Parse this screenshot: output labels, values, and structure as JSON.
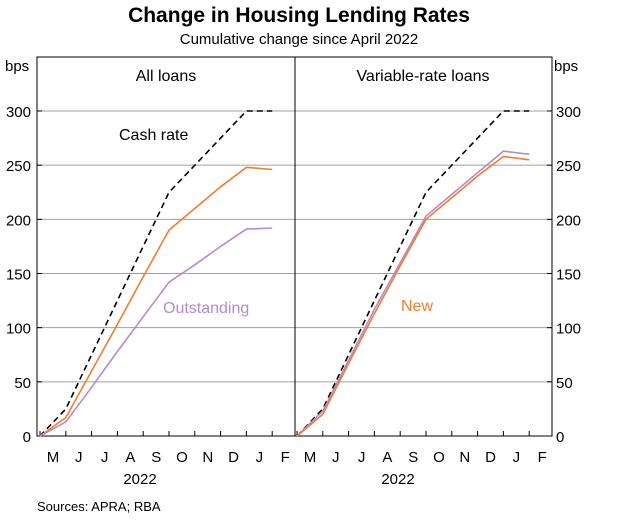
{
  "title": "Change in Housing Lending Rates",
  "subtitle": "Cumulative change since April 2022",
  "source": "Sources: APRA; RBA",
  "colors": {
    "cash_rate": "#000000",
    "orange": "#f47c2c",
    "purple": "#b48ccc",
    "grid": "#a0a0a0"
  },
  "chart_data": [
    {
      "type": "line",
      "title": "All loans",
      "ylabel": "bps",
      "ylim": [
        0,
        300
      ],
      "yticks": [
        "0",
        "50",
        "100",
        "150",
        "200",
        "250",
        "300"
      ],
      "xticks": [
        "M",
        "J",
        "J",
        "A",
        "S",
        "O",
        "N",
        "D",
        "J",
        "F"
      ],
      "xlabel": "2022",
      "annotations": [
        "Cash rate",
        "Outstanding"
      ],
      "series": [
        {
          "name": "Cash rate",
          "style": "dashed",
          "x": [
            0,
            1,
            2,
            3,
            4,
            5,
            6,
            7,
            8,
            9
          ],
          "values": [
            0,
            25,
            75,
            125,
            175,
            225,
            250,
            275,
            300,
            300
          ]
        },
        {
          "name": "",
          "style": "solid-orange",
          "x": [
            0,
            1,
            2,
            3,
            4,
            5,
            6,
            7,
            8,
            9
          ],
          "values": [
            0,
            17,
            60,
            103,
            147,
            190,
            210,
            230,
            248,
            246
          ]
        },
        {
          "name": "Outstanding",
          "style": "solid-purple",
          "x": [
            0,
            1,
            2,
            3,
            4,
            5,
            6,
            7,
            8,
            9
          ],
          "values": [
            0,
            13,
            45,
            78,
            110,
            142,
            158,
            175,
            191,
            192
          ]
        }
      ]
    },
    {
      "type": "line",
      "title": "Variable-rate loans",
      "ylabel": "bps",
      "ylim": [
        0,
        300
      ],
      "yticks": [
        "0",
        "50",
        "100",
        "150",
        "200",
        "250",
        "300"
      ],
      "xticks": [
        "M",
        "J",
        "J",
        "A",
        "S",
        "O",
        "N",
        "D",
        "J",
        "F"
      ],
      "xlabel": "2022",
      "annotations": [
        "New"
      ],
      "series": [
        {
          "name": "Cash rate",
          "style": "dashed",
          "x": [
            0,
            1,
            2,
            3,
            4,
            5,
            6,
            7,
            8,
            9
          ],
          "values": [
            0,
            25,
            75,
            125,
            175,
            225,
            250,
            275,
            300,
            300
          ]
        },
        {
          "name": "",
          "style": "solid-purple",
          "x": [
            0,
            1,
            2,
            3,
            4,
            5,
            6,
            7,
            8,
            9
          ],
          "values": [
            0,
            23,
            70,
            117,
            160,
            203,
            223,
            243,
            263,
            260
          ]
        },
        {
          "name": "New",
          "style": "solid-orange",
          "x": [
            0,
            1,
            2,
            3,
            4,
            5,
            6,
            7,
            8,
            9
          ],
          "values": [
            0,
            20,
            67,
            113,
            157,
            200,
            220,
            240,
            258,
            255
          ]
        }
      ]
    }
  ]
}
